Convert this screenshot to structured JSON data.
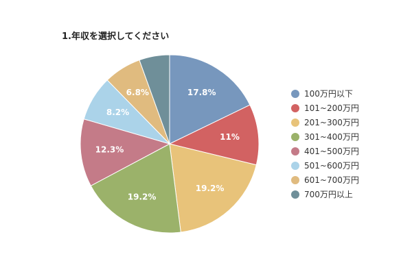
{
  "chart_data": {
    "type": "pie",
    "title": "1.年収を選択してください",
    "categories": [
      "100万円以下",
      "101~200万円",
      "201~300万円",
      "301~400万円",
      "401~500万円",
      "501~600万円",
      "601~700万円",
      "700万円以上"
    ],
    "values": [
      17.8,
      11,
      19.2,
      19.2,
      12.3,
      8.2,
      6.8,
      5.5
    ],
    "data_labels": [
      "17.8%",
      "11%",
      "19.2%",
      "19.2%",
      "12.3%",
      "8.2%",
      "6.8%",
      ""
    ],
    "colors": [
      "#7797bd",
      "#d26262",
      "#e8c37a",
      "#9bb26a",
      "#c47b88",
      "#abd3e9",
      "#e0bb7f",
      "#6f8f99"
    ],
    "legend_position": "right"
  }
}
